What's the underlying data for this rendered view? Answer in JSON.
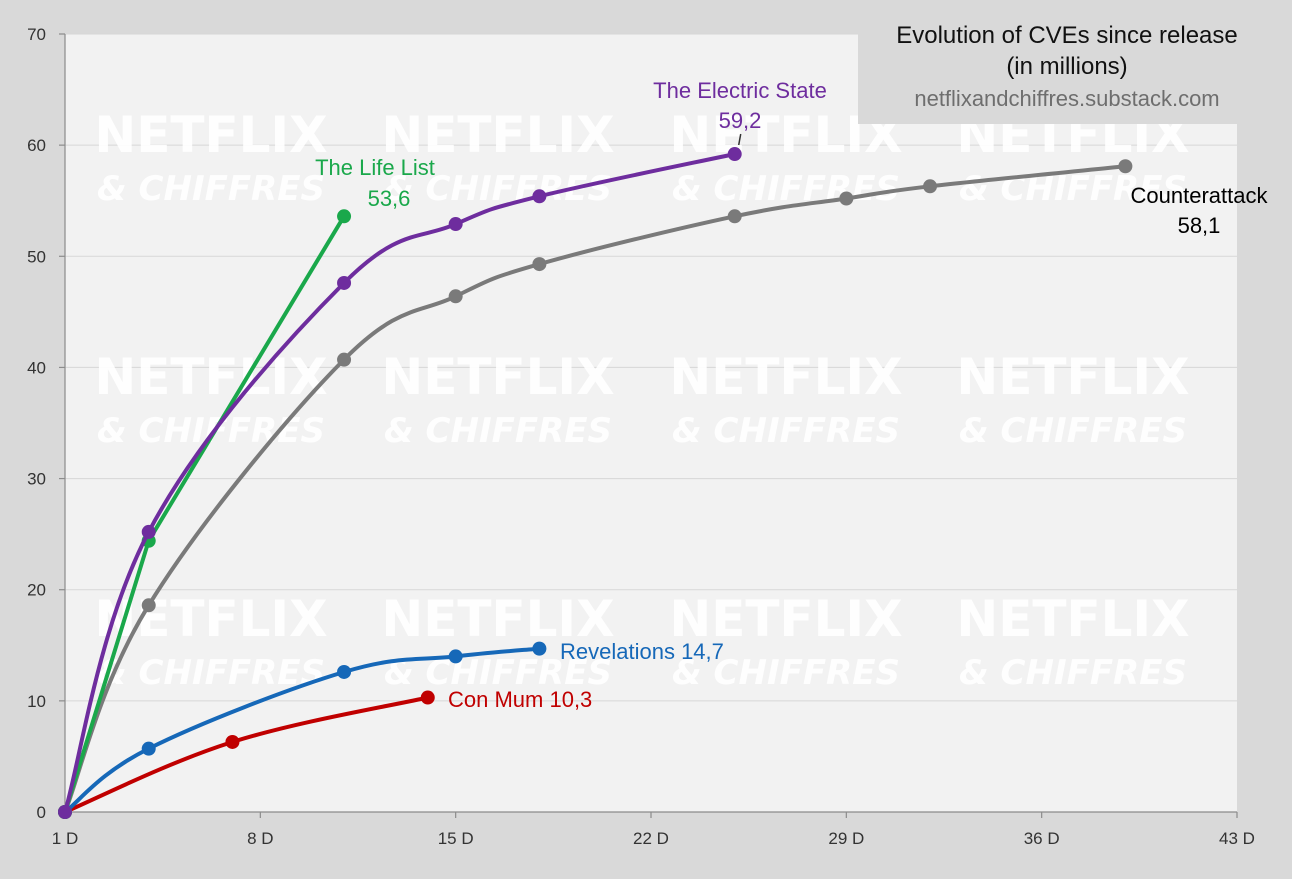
{
  "chart_data": {
    "type": "line",
    "title_lines": [
      "Evolution of CVEs since release",
      "(in millions)"
    ],
    "source": "netflixandchiffres.substack.com",
    "watermark": {
      "line1": "NETFLIX",
      "line2": "& CHIFFRES"
    },
    "xlabel": "",
    "ylabel": "",
    "xlim": [
      1,
      43
    ],
    "ylim": [
      0,
      70
    ],
    "x_ticks": [
      1,
      8,
      15,
      22,
      29,
      36,
      43
    ],
    "x_tick_labels": [
      "1 D",
      "8 D",
      "15 D",
      "22 D",
      "29 D",
      "36 D",
      "43 D"
    ],
    "y_ticks": [
      0,
      10,
      20,
      30,
      40,
      50,
      60,
      70
    ],
    "y_tick_labels": [
      "0",
      "10",
      "20",
      "30",
      "40",
      "50",
      "60",
      "70"
    ],
    "grid": true,
    "series": [
      {
        "name": "Counterattack",
        "color": "#7a7a7a",
        "x": [
          1,
          4,
          11,
          15,
          18,
          25,
          29,
          32,
          39
        ],
        "y": [
          0,
          18.6,
          40.7,
          46.4,
          49.3,
          53.6,
          55.2,
          56.3,
          58.1
        ],
        "label_lines": [
          "Counterattack",
          "58,1"
        ],
        "label_color": "#000000"
      },
      {
        "name": "The Life List",
        "color": "#1aa84b",
        "x": [
          1,
          4,
          11
        ],
        "y": [
          0,
          24.4,
          53.6
        ],
        "label_lines": [
          "The Life List",
          "53,6"
        ],
        "label_color": "#1aa84b"
      },
      {
        "name": "The Electric State",
        "color": "#6e2d9e",
        "x": [
          1,
          4,
          11,
          15,
          18,
          25
        ],
        "y": [
          0,
          25.2,
          47.6,
          52.9,
          55.4,
          59.2
        ],
        "label_lines": [
          "The Electric State",
          "59,2"
        ],
        "label_color": "#6e2d9e"
      },
      {
        "name": "Revelations",
        "color": "#1668b8",
        "x": [
          1,
          4,
          11,
          15,
          18
        ],
        "y": [
          0,
          5.7,
          12.6,
          14.0,
          14.7
        ],
        "label_lines": [
          "Revelations 14,7"
        ],
        "label_color": "#1668b8"
      },
      {
        "name": "Con Mum",
        "color": "#c00000",
        "x": [
          1,
          7,
          14
        ],
        "y": [
          0,
          6.3,
          10.3
        ],
        "label_lines": [
          "Con Mum 10,3"
        ],
        "label_color": "#c00000"
      }
    ]
  }
}
